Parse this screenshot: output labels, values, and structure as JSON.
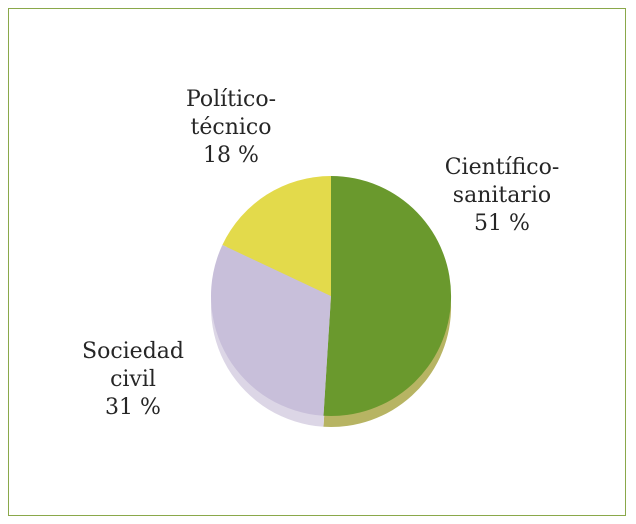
{
  "chart_data": {
    "type": "pie",
    "title": "",
    "slices": [
      {
        "label_lines": [
          "Científico-",
          "sanitario"
        ],
        "value_text": "51 %",
        "value": 51,
        "color": "#6a992d",
        "side_color": "#b7b463"
      },
      {
        "label_lines": [
          "Sociedad",
          "civil"
        ],
        "value_text": "31 %",
        "value": 31,
        "color": "#c8bfda",
        "side_color": "#dcd6e6"
      },
      {
        "label_lines": [
          "Político-",
          "técnico"
        ],
        "value_text": "18 %",
        "value": 18,
        "color": "#e3da4b",
        "side_color": "#e3da4b"
      }
    ],
    "legend": "none",
    "three_d": true
  },
  "colors": {
    "border": "#8aa84a",
    "text": "#262626"
  }
}
